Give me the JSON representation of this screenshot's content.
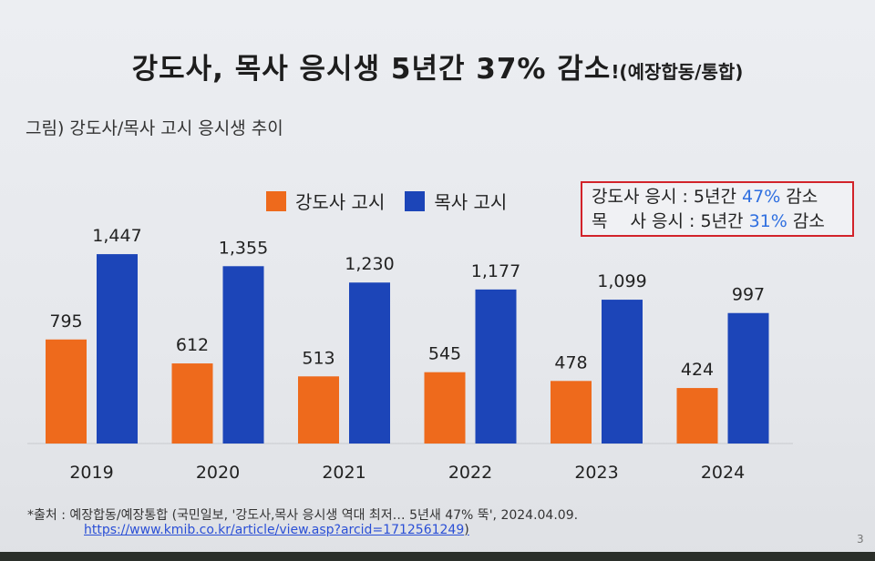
{
  "title": {
    "main": "강도사, 목사 응시생 5년간 37% 감소",
    "suffix": "!(예장합동/통합)"
  },
  "subtitle": "그림) 강도사/목사 고시 응시생 추이",
  "note": {
    "line1": {
      "label": "강도사 응시 : 5년간 ",
      "pct": "47%",
      "tail": " 감소"
    },
    "line2": {
      "label": "목　 사 응시 : 5년간 ",
      "pct": "31%",
      "tail": " 감소"
    }
  },
  "colors": {
    "orange": "#ee6a1c",
    "blue": "#1c45b8",
    "note_border": "#d2232a",
    "note_pct": "#2f6fe0"
  },
  "chart_data": {
    "type": "bar",
    "title": "강도사/목사 고시 응시생 추이",
    "categories": [
      "2019",
      "2020",
      "2021",
      "2022",
      "2023",
      "2024"
    ],
    "series": [
      {
        "name": "강도사 고시",
        "color": "#ee6a1c",
        "values": [
          795,
          612,
          513,
          545,
          478,
          424
        ]
      },
      {
        "name": "목사 고시",
        "color": "#1c45b8",
        "values": [
          1447,
          1355,
          1230,
          1177,
          1099,
          997
        ]
      }
    ],
    "data_labels": [
      [
        "795",
        "612",
        "513",
        "545",
        "478",
        "424"
      ],
      [
        "1,447",
        "1,355",
        "1,230",
        "1,177",
        "1,099",
        "997"
      ]
    ],
    "legend_position": "top",
    "grid": false,
    "ylim": [
      0,
      1500
    ]
  },
  "footer": {
    "source": "*출처 : 예장합동/예장통합 (국민일보, '강도사,목사 응시생 역대 최저… 5년새 47% 뚝', 2024.04.09.",
    "link": "https://www.kmib.co.kr/article/view.asp?arcid=1712561249",
    "link_close": ")",
    "page_number": "3"
  }
}
